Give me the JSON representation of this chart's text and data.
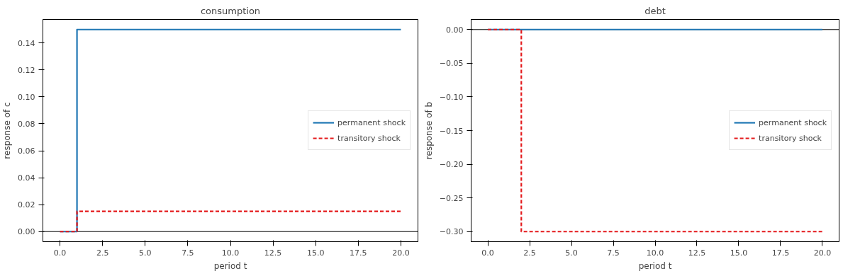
{
  "chart_data": [
    {
      "type": "step",
      "title": "consumption",
      "xlabel": "period t",
      "ylabel": "response of c",
      "x": [
        0,
        1,
        2,
        3,
        4,
        5,
        6,
        7,
        8,
        9,
        10,
        11,
        12,
        13,
        14,
        15,
        16,
        17,
        18,
        19,
        20
      ],
      "series": [
        {
          "name": "permanent shock",
          "color": "#1f77b4",
          "line_style": "solid",
          "values": [
            0,
            0.15,
            0.15,
            0.15,
            0.15,
            0.15,
            0.15,
            0.15,
            0.15,
            0.15,
            0.15,
            0.15,
            0.15,
            0.15,
            0.15,
            0.15,
            0.15,
            0.15,
            0.15,
            0.15,
            0.15
          ]
        },
        {
          "name": "transitory shock",
          "color": "#e41a1c",
          "line_style": "dashed",
          "values": [
            0,
            0.015,
            0.015,
            0.015,
            0.015,
            0.015,
            0.015,
            0.015,
            0.015,
            0.015,
            0.015,
            0.015,
            0.015,
            0.015,
            0.015,
            0.015,
            0.015,
            0.015,
            0.015,
            0.015,
            0.015
          ]
        }
      ],
      "xlim": [
        -1,
        21
      ],
      "ylim": [
        -0.0075,
        0.1575
      ],
      "xticks": [
        {
          "value": 0,
          "label": "0.0"
        },
        {
          "value": 2.5,
          "label": "2.5"
        },
        {
          "value": 5,
          "label": "5.0"
        },
        {
          "value": 7.5,
          "label": "7.5"
        },
        {
          "value": 10,
          "label": "10.0"
        },
        {
          "value": 12.5,
          "label": "12.5"
        },
        {
          "value": 15,
          "label": "15.0"
        },
        {
          "value": 17.5,
          "label": "17.5"
        },
        {
          "value": 20,
          "label": "20.0"
        }
      ],
      "yticks": [
        {
          "value": 0,
          "label": "0.00"
        },
        {
          "value": 0.02,
          "label": "0.02"
        },
        {
          "value": 0.04,
          "label": "0.04"
        },
        {
          "value": 0.06,
          "label": "0.06"
        },
        {
          "value": 0.08,
          "label": "0.08"
        },
        {
          "value": 0.1,
          "label": "0.10"
        },
        {
          "value": 0.12,
          "label": "0.12"
        },
        {
          "value": 0.14,
          "label": "0.14"
        }
      ],
      "ref_lines": [
        {
          "axis": "y",
          "value": 0,
          "color": "#000000"
        }
      ],
      "legend": "right",
      "grid": false
    },
    {
      "type": "step",
      "title": "debt",
      "xlabel": "period t",
      "ylabel": "response of b",
      "x": [
        0,
        1,
        2,
        3,
        4,
        5,
        6,
        7,
        8,
        9,
        10,
        11,
        12,
        13,
        14,
        15,
        16,
        17,
        18,
        19,
        20
      ],
      "series": [
        {
          "name": "permanent shock",
          "color": "#1f77b4",
          "line_style": "solid",
          "values": [
            0,
            0,
            0,
            0,
            0,
            0,
            0,
            0,
            0,
            0,
            0,
            0,
            0,
            0,
            0,
            0,
            0,
            0,
            0,
            0,
            0
          ]
        },
        {
          "name": "transitory shock",
          "color": "#e41a1c",
          "line_style": "dashed",
          "values": [
            0,
            0,
            -0.3,
            -0.3,
            -0.3,
            -0.3,
            -0.3,
            -0.3,
            -0.3,
            -0.3,
            -0.3,
            -0.3,
            -0.3,
            -0.3,
            -0.3,
            -0.3,
            -0.3,
            -0.3,
            -0.3,
            -0.3,
            -0.3
          ]
        }
      ],
      "xlim": [
        -1,
        21
      ],
      "ylim": [
        -0.315,
        0.015
      ],
      "xticks": [
        {
          "value": 0,
          "label": "0.0"
        },
        {
          "value": 2.5,
          "label": "2.5"
        },
        {
          "value": 5,
          "label": "5.0"
        },
        {
          "value": 7.5,
          "label": "7.5"
        },
        {
          "value": 10,
          "label": "10.0"
        },
        {
          "value": 12.5,
          "label": "12.5"
        },
        {
          "value": 15,
          "label": "15.0"
        },
        {
          "value": 17.5,
          "label": "17.5"
        },
        {
          "value": 20,
          "label": "20.0"
        }
      ],
      "yticks": [
        {
          "value": 0,
          "label": "0.00"
        },
        {
          "value": -0.05,
          "label": "−0.05"
        },
        {
          "value": -0.1,
          "label": "−0.10"
        },
        {
          "value": -0.15,
          "label": "−0.15"
        },
        {
          "value": -0.2,
          "label": "−0.20"
        },
        {
          "value": -0.25,
          "label": "−0.25"
        },
        {
          "value": -0.3,
          "label": "−0.30"
        }
      ],
      "ref_lines": [
        {
          "axis": "y",
          "value": 0,
          "color": "#000000"
        }
      ],
      "legend": "right",
      "grid": false
    }
  ]
}
